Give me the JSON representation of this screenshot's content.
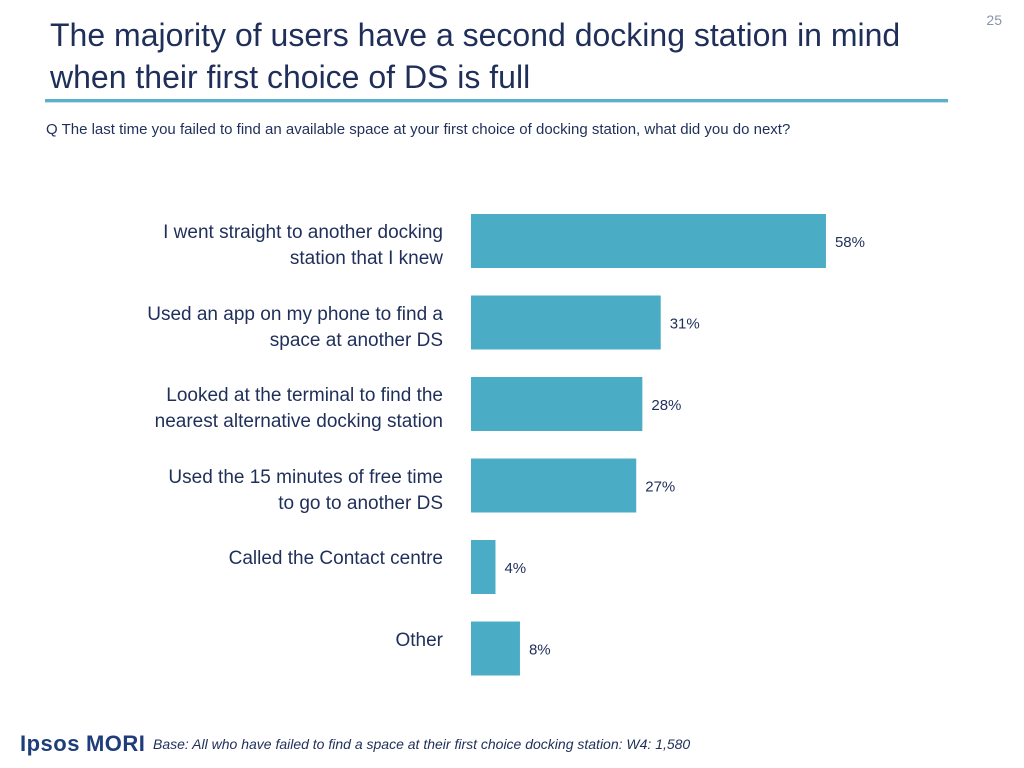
{
  "slide_number": "25",
  "title": "The majority of users have a second docking station in mind when their first choice of DS is full",
  "question": "Q The last time you failed to find an available space at your first choice of docking station, what did you do next?",
  "colors": {
    "bar": "#4bacc6",
    "text": "#1f2f5a",
    "rule": "#5bb1cc"
  },
  "chart_data": {
    "type": "bar",
    "orientation": "horizontal",
    "categories": [
      [
        "I went straight to another docking",
        "station that I knew"
      ],
      [
        "Used an app on my phone to find a",
        "space at another DS"
      ],
      [
        "Looked at the terminal to find the",
        "nearest alternative docking station"
      ],
      [
        "Used the 15 minutes of free time",
        "to go to another DS"
      ],
      [
        "Called the Contact centre"
      ],
      [
        "Other"
      ]
    ],
    "values": [
      58,
      31,
      28,
      27,
      4,
      8
    ],
    "value_labels": [
      "58%",
      "31%",
      "28%",
      "27%",
      "4%",
      "8%"
    ],
    "unit": "%",
    "grid": false,
    "legend": "none"
  },
  "footer": {
    "logo_part1": "Ipsos",
    "logo_part2": "MORI",
    "base": "Base: All who have failed to find a space at their first choice docking station: W4: 1,580"
  }
}
